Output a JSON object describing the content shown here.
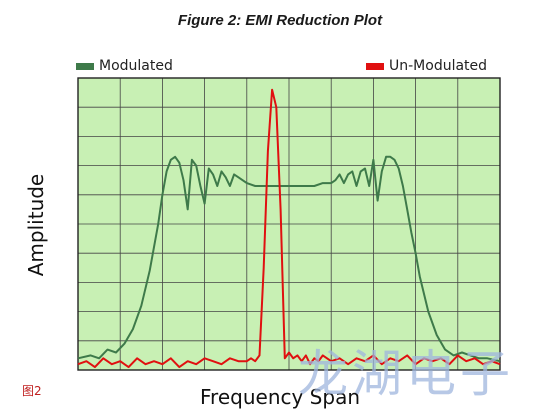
{
  "figure": {
    "title": "Figure 2: EMI Reduction Plot",
    "number_label": "图2",
    "watermark_text": "龙湖电子"
  },
  "legend": {
    "modulated_label": "Modulated",
    "unmodulated_label": "Un-Modulated"
  },
  "colors": {
    "plot_background": "#c8f0b4",
    "grid": "#444444",
    "modulated": "#3e7a4a",
    "unmodulated": "#e01010"
  },
  "chart_data": {
    "type": "line",
    "title": "Figure 2: EMI Reduction Plot",
    "xlabel": "Frequency Span",
    "ylabel": "Amplitude",
    "xlim": [
      0,
      100
    ],
    "ylim": [
      0,
      100
    ],
    "tick_labels_shown": false,
    "grid": true,
    "grid_divisions": {
      "x": 10,
      "y": 10
    },
    "legend_placement": "top",
    "series": [
      {
        "name": "Modulated",
        "color": "#3e7a4a",
        "x": [
          0,
          3,
          5,
          7,
          9,
          11,
          13,
          15,
          17,
          19,
          20,
          21,
          22,
          23,
          24,
          25,
          26,
          27,
          28,
          29,
          30,
          31,
          32,
          33,
          34,
          35,
          36,
          37,
          38,
          39,
          40,
          42,
          44,
          46,
          48,
          50,
          52,
          54,
          56,
          58,
          60,
          61,
          62,
          63,
          64,
          65,
          66,
          67,
          68,
          69,
          70,
          71,
          72,
          73,
          74,
          75,
          76,
          77,
          78,
          79,
          80,
          81,
          83,
          85,
          87,
          89,
          91,
          93,
          95,
          97,
          100
        ],
        "y": [
          4,
          5,
          4,
          7,
          6,
          9,
          14,
          22,
          34,
          50,
          60,
          68,
          72,
          73,
          71,
          65,
          55,
          72,
          70,
          63,
          57,
          69,
          67,
          63,
          68,
          66,
          63,
          67,
          66,
          65,
          64,
          63,
          63,
          63,
          63,
          63,
          63,
          63,
          63,
          64,
          64,
          65,
          67,
          64,
          67,
          68,
          63,
          68,
          69,
          63,
          72,
          58,
          68,
          73,
          73,
          72,
          69,
          63,
          55,
          47,
          40,
          32,
          20,
          12,
          7,
          5,
          6,
          5,
          4,
          4,
          3
        ]
      },
      {
        "name": "Un-Modulated",
        "color": "#e01010",
        "x": [
          0,
          2,
          4,
          6,
          8,
          10,
          12,
          14,
          16,
          18,
          20,
          22,
          24,
          26,
          28,
          30,
          32,
          34,
          36,
          38,
          40,
          41,
          42,
          43,
          44,
          45,
          46,
          47,
          48,
          49,
          50,
          51,
          52,
          53,
          54,
          55,
          56,
          57,
          58,
          60,
          62,
          64,
          66,
          68,
          70,
          72,
          74,
          76,
          78,
          80,
          82,
          84,
          86,
          88,
          90,
          92,
          94,
          96,
          98,
          100
        ],
        "y": [
          2,
          3,
          1,
          4,
          2,
          3,
          1,
          4,
          2,
          3,
          2,
          4,
          1,
          3,
          2,
          4,
          3,
          2,
          4,
          3,
          3,
          4,
          3,
          5,
          35,
          75,
          96,
          90,
          55,
          4,
          6,
          4,
          5,
          3,
          5,
          2,
          4,
          3,
          5,
          3,
          4,
          2,
          4,
          3,
          5,
          2,
          4,
          3,
          5,
          2,
          4,
          3,
          4,
          2,
          5,
          3,
          4,
          2,
          3,
          2
        ]
      }
    ]
  }
}
